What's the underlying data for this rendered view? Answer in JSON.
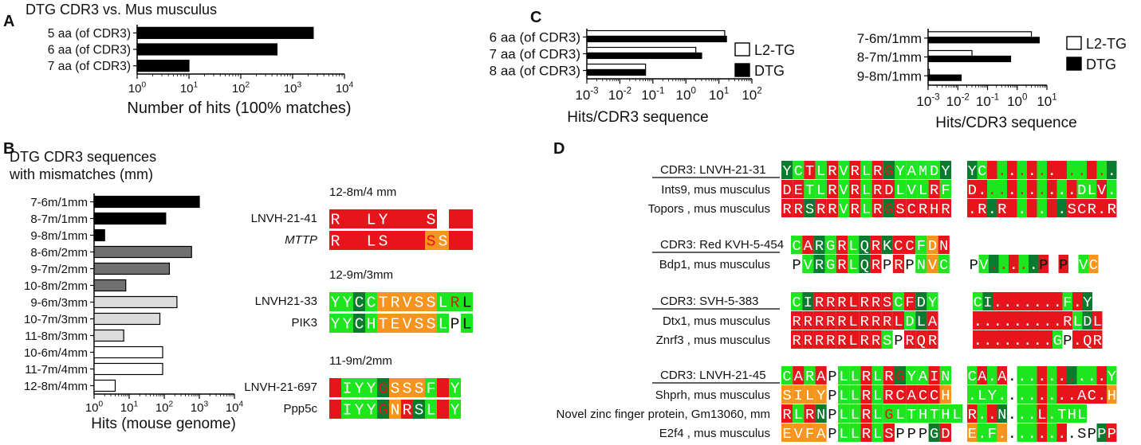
{
  "panel_labels": {
    "a": "A",
    "b": "B",
    "c": "C",
    "d": "D"
  },
  "colors": {
    "red": "#e8141b",
    "light_green": "#1ee61e",
    "dark_green": "#0a7a2e",
    "orange": "#f7941d",
    "white": "#ffffff",
    "bar_black": "#000000",
    "bar_dark_gray": "#707070",
    "bar_gray": "#a3a3a3",
    "bar_light_gray": "#dcdcdc"
  },
  "chart_data": [
    {
      "id": "A",
      "type": "bar",
      "orientation": "horizontal",
      "title": "DTG CDR3 vs. Mus musculus",
      "xlabel": "Number of hits (100% matches)",
      "xscale": "log",
      "xlim": [
        1,
        10000
      ],
      "ticks": [
        {
          "base": "10",
          "exp": "0"
        },
        {
          "base": "10",
          "exp": "1"
        },
        {
          "base": "10",
          "exp": "2"
        },
        {
          "base": "10",
          "exp": "3"
        },
        {
          "base": "10",
          "exp": "4"
        }
      ],
      "categories": [
        "5 aa (of CDR3)",
        "6 aa (of CDR3)",
        "7 aa (of CDR3)"
      ],
      "values": [
        2500,
        500,
        10
      ]
    },
    {
      "id": "B",
      "type": "bar",
      "orientation": "horizontal",
      "title_line1": "DTG CDR3 sequences",
      "title_line2": "with mismatches (mm)",
      "xlabel": "Hits (mouse genome)",
      "xscale": "log",
      "xlim": [
        1,
        10000
      ],
      "ticks": [
        {
          "base": "10",
          "exp": "0"
        },
        {
          "base": "10",
          "exp": "1"
        },
        {
          "base": "10",
          "exp": "2"
        },
        {
          "base": "10",
          "exp": "3"
        },
        {
          "base": "10",
          "exp": "4"
        }
      ],
      "categories": [
        "7-6m/1mm",
        "8-7m/1mm",
        "9-8m/1mm",
        "8-6m/2mm",
        "9-7m/2mm",
        "10-8m/2mm",
        "9-6m/3mm",
        "10-7m/3mm",
        "11-8m/3mm",
        "10-6m/4mm",
        "11-7m/4mm",
        "12-8m/4mm"
      ],
      "values": [
        1000,
        110,
        2,
        600,
        140,
        8,
        230,
        75,
        7,
        90,
        90,
        4
      ],
      "fill_groups": [
        "bar_black",
        "bar_black",
        "bar_black",
        "bar_dark_gray",
        "bar_dark_gray",
        "bar_dark_gray",
        "bar_light_gray",
        "bar_light_gray",
        "bar_light_gray",
        "white",
        "white",
        "white"
      ]
    },
    {
      "id": "C1",
      "type": "bar",
      "orientation": "horizontal",
      "xlabel": "Hits/CDR3 sequence",
      "xscale": "log",
      "xlim": [
        0.001,
        100
      ],
      "ticks": [
        {
          "base": "10",
          "exp": "-3"
        },
        {
          "base": "10",
          "exp": "-2"
        },
        {
          "base": "10",
          "exp": "-1"
        },
        {
          "base": "10",
          "exp": "0"
        },
        {
          "base": "10",
          "exp": "1"
        },
        {
          "base": "10",
          "exp": "2"
        }
      ],
      "categories": [
        "6 aa (of CDR3)",
        "7 aa (of CDR3)",
        "8 aa (of CDR3)"
      ],
      "series": [
        {
          "name": "L2-TG",
          "values": [
            15,
            2,
            0.06
          ]
        },
        {
          "name": "DTG",
          "values": [
            17,
            3,
            0.06
          ]
        }
      ],
      "legend": "right"
    },
    {
      "id": "C2",
      "type": "bar",
      "orientation": "horizontal",
      "xlabel": "Hits/CDR3 sequence",
      "xscale": "log",
      "xlim": [
        0.001,
        10
      ],
      "ticks": [
        {
          "base": "10",
          "exp": "-3"
        },
        {
          "base": "10",
          "exp": "-2"
        },
        {
          "base": "10",
          "exp": "-1"
        },
        {
          "base": "10",
          "exp": "0"
        },
        {
          "base": "10",
          "exp": "1"
        }
      ],
      "categories": [
        "7-6m/1mm",
        "8-7m/1mm",
        "9-8m/1mm"
      ],
      "series": [
        {
          "name": "L2-TG",
          "values": [
            3,
            0.03,
            0.0011
          ]
        },
        {
          "name": "DTG",
          "values": [
            5.5,
            0.6,
            0.013
          ]
        }
      ],
      "legend": "right"
    }
  ],
  "panel_b_alignments": [
    {
      "header": "12-8m/4 mm",
      "rows": [
        {
          "label": "LNVH-21-41",
          "italic": false,
          "seq": "RALLYDYKSPFA",
          "colors": "RRRRRRRRRWRR",
          "text": "WRRWWRRRWWRR"
        },
        {
          "label": "MTTP",
          "italic": true,
          "seq": "RALLSKFKSSFA",
          "colors": "RRRRRRRROORR",
          "text": "WRRWWRRRRWRR"
        }
      ]
    },
    {
      "header": "12-9m/3mm",
      "rows": [
        {
          "label": "LNVH21-33",
          "italic": false,
          "seq": "YYCCTRVSSLRL",
          "colors": "GGDGOOOOOGGG",
          "text": "WWWWWWWWWWRK"
        },
        {
          "label": "PIK3",
          "italic": false,
          "seq": "YYCHTEVSSLPL",
          "colors": "GGDGOOOOOGWG",
          "text": "WWWWWWWWWWKK"
        }
      ]
    },
    {
      "header": "11-9m/2mm",
      "rows": [
        {
          "label": "LNVH-21-697",
          "italic": false,
          "seq": "AIYYGSSSFAY",
          "colors": "RGGGDOOOGRG",
          "text": "RWWWRWWWWRW"
        },
        {
          "label": "Ppp5c",
          "italic": false,
          "seq": "AIYYGNRSLAY",
          "colors": "RGGGDORDGRG",
          "text": "RWWWRWWWWRW"
        }
      ]
    }
  ],
  "panel_d_groups": [
    {
      "header": "CDR3: LNVH-21-31",
      "rows": [
        {
          "label": "Ints9, mus musculus",
          "seq": "YCTLRVRLRGYAMDY",
          "colors": "DGRGRGRGRDGGGGD",
          "text": "WWWWWWWWWRWWWWW",
          "right_seq": "YC.............",
          "right_colors": "DGRGRGRGRRGGRGD",
          "right_text": "WWRRWRWRWRRRRRW"
        },
        {
          "label": "Topors , mus musculus",
          "seq": "DETLRVRLRDLVLRF",
          "colors": "RRGGRGRGRRGGGRG",
          "text": "WWWWWWWWWWWWWWW",
          "right_seq": "D..........DLV.R.",
          "right_colors": "RRGGRGRGRGRGGRG",
          "right_text": "WWRRWRWRWWWWWW"
        },
        {
          "label": "",
          "seq": "RRSRRVRLRGSCRHR",
          "colors": "RRDRRGRGRDRRRRR",
          "text": "WWWWWWWWWRWWWWW",
          "right_seq": ".R.R......SCR.R",
          "right_colors": "RRDRRGRGRDRRRRR",
          "right_text": "WWWWRWRWRWWWWWW"
        }
      ]
    },
    {
      "header": "CDR3: Red KVH-5-454",
      "rows": [
        {
          "label": "Bdp1, mus musculus",
          "seq": "CARGRLQRKCCFDN",
          "colors": "GRDGRGDRDRRGOR",
          "text": "WWWWWWWWWWWWWW",
          "right_seq": "",
          "right_colors": "",
          "right_text": ""
        },
        {
          "label": "",
          "seq": "PVRGRLQRPRPNVC",
          "colors": "WGDGRGDRWRWGOG",
          "text": "KWWWWWWWKWKWWW",
          "right_seq": "PV.....PRPNVC",
          "right_colors": "WGDGRGDRWRWGOG",
          "right_text": "KWRRWRWKWKWWW"
        }
      ]
    },
    {
      "header": "CDR3: SVH-5-383",
      "rows": [
        {
          "label": "Dtx1, mus musculus",
          "seq": "CIRRRLRRSCFDY",
          "colors": "GDRRRRRRRGRDG",
          "text": "WWWWWWWWWWWWW",
          "right_seq": "CI.......F.Y",
          "right_colors": "GDRRRRRRRGRDG",
          "right_text": "WWWWWWWWWWWWW"
        },
        {
          "label": "Znrf3 , mus musculus",
          "seq": "RRRRRLRRRLDLA",
          "colors": "RRRRRRRRRRGDR",
          "text": "WWWWWWWWWWWWW",
          "right_seq": ".........RLDLA",
          "right_colors": "RRRRRRRRRRGDR",
          "right_text": "WWWWWWWWWWWWW"
        },
        {
          "label": "",
          "seq": "RRRRRLRRSPRQR",
          "colors": "RRRRRRRRGWRRR",
          "text": "WWWWWWWWWKWWW",
          "right_seq": "........GP.QR",
          "right_colors": "RRRRRRRRGWRRR",
          "right_text": "WWWWWWWWWKWWW"
        }
      ]
    },
    {
      "header": "CDR3: LNVH-21-45",
      "rows": [
        {
          "label": "Shprh, mus musculus",
          "seq": "CARAPLLRLRGYAIN",
          "colors": "GRGRWGGRGRDGGRG",
          "text": "WWWWKWWWWWRWWWW",
          "right_seq": "CA.A..........Y.IN",
          "right_colors": "GRGRWGGRGRDGGRG",
          "right_text": "WWWWKWWWWWRWWWW"
        },
        {
          "label": "Novel zinc finger protein, Gm13060, mm",
          "seq": "SILYPLLRLRCACCH",
          "colors": "OOOOWGGRGRRRRRO",
          "text": "WWWWKWWWWWWWWWW",
          "right_seq": ".LY........AC.H",
          "right_colors": "GGGGWGGRGRRRRRO",
          "right_text": "WWWWKWWWWWWWWWW"
        },
        {
          "label": "E2f4 , mus musculus",
          "seq": "RLRNPLLRLGLTHTHL",
          "colors": "RGRDWGGRGGGGGGGG",
          "text": "WWWWKWWWWRWWWWWW",
          "right_seq": "R..N...L.THL",
          "right_colors": "RGRDWGGRGGGGGGGG",
          "right_text": "WWWWKWWWWWWWWWWW"
        },
        {
          "label": "",
          "seq": "EVFAPLLRLSPPPGD",
          "colors": "OOOOWGGRGRWWWDR",
          "text": "WWWWKWWWWWKKKWW",
          "right_seq": "E.F........SPPP..",
          "right_colors": "OGGOWGGRGRWWWDR",
          "right_text": "WWWWKWWWWWKKKWW"
        }
      ]
    }
  ],
  "panel_d_labels": [
    "Ints9, mus musculus",
    "Topors , mus musculus",
    "Bdp1, mus musculus",
    "Dtx1, mus musculus",
    "Znrf3 , mus musculus",
    "Shprh, mus musculus",
    "Novel zinc finger protein, Gm13060, mm",
    "E2f4 , mus musculus"
  ]
}
